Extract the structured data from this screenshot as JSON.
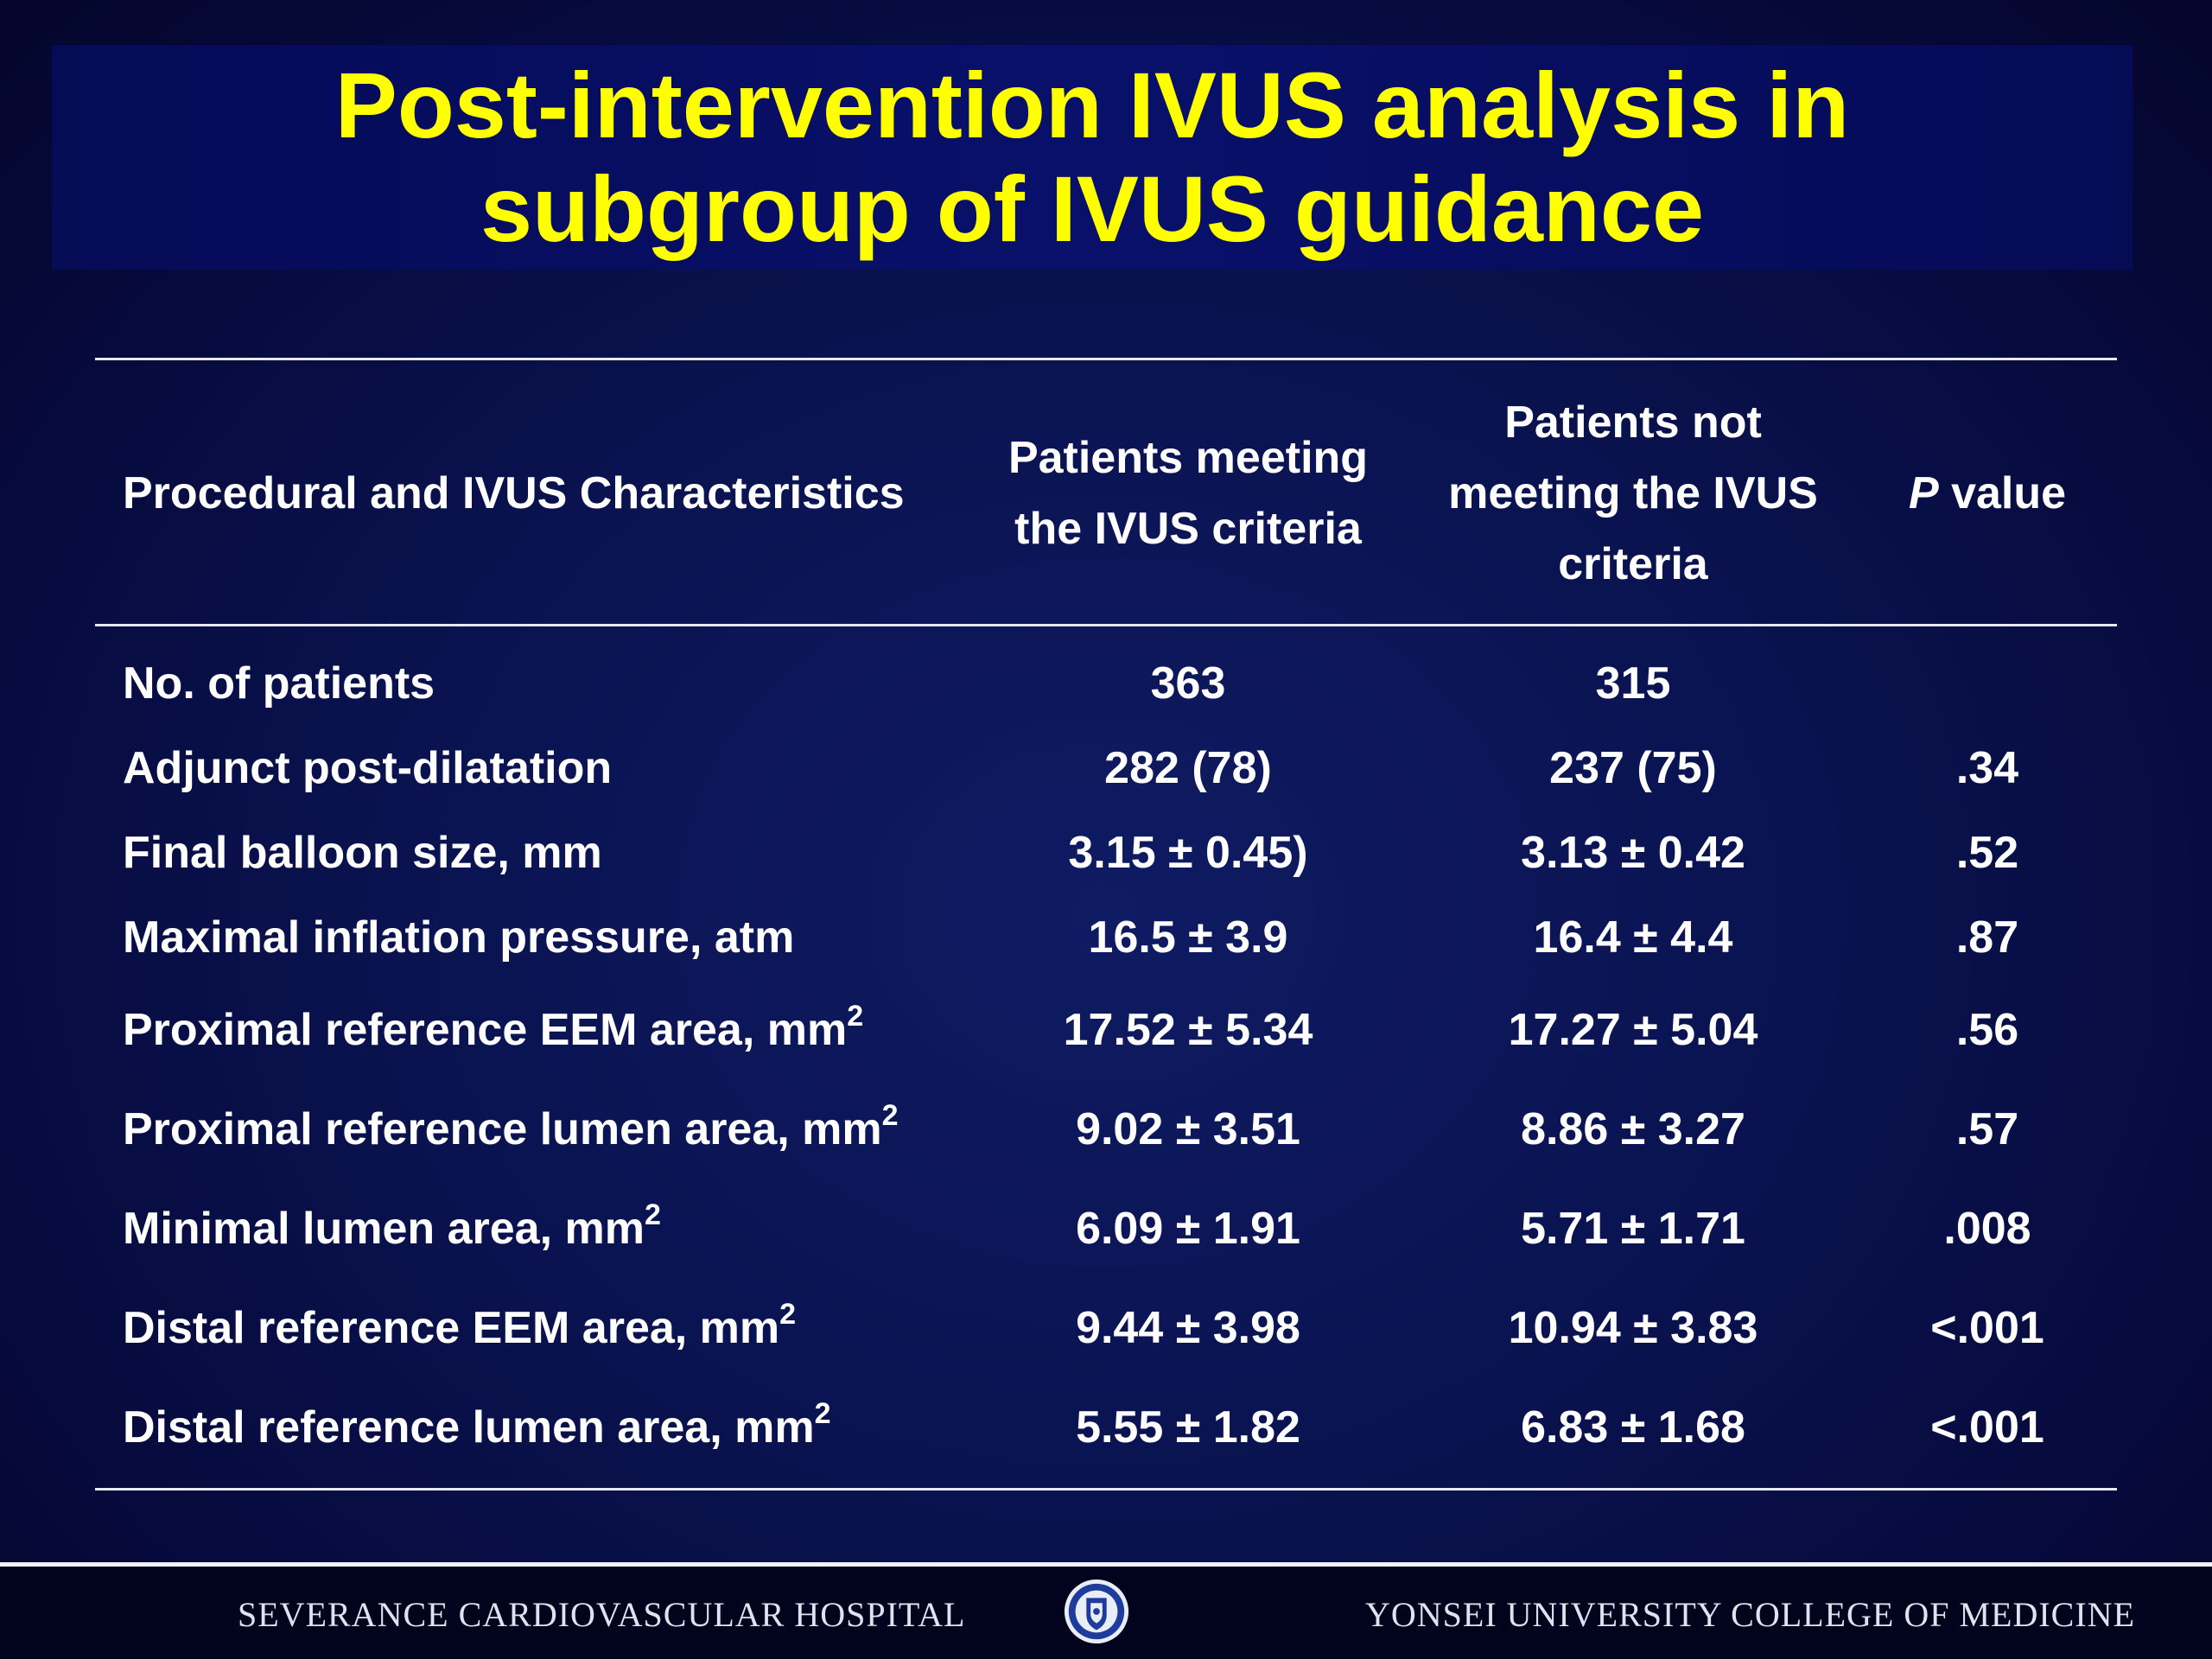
{
  "title": {
    "line1": "Post-intervention IVUS analysis in",
    "line2": "subgroup of IVUS guidance"
  },
  "table": {
    "headers": {
      "characteristics": "Procedural and IVUS Characteristics",
      "group_a_line1": "Patients meeting",
      "group_a_line2": "the IVUS criteria",
      "group_b_line1": "Patients not",
      "group_b_line2": "meeting the IVUS",
      "group_b_line3": "criteria",
      "p_italic": "P",
      "p_rest": " value"
    },
    "rows": [
      {
        "label": "No. of patients",
        "sup": "",
        "a": "363",
        "b": "315",
        "p": ""
      },
      {
        "label": "Adjunct post-dilatation",
        "sup": "",
        "a": "282 (78)",
        "b": "237 (75)",
        "p": ".34"
      },
      {
        "label": "Final balloon size, mm",
        "sup": "",
        "a": "3.15 ± 0.45)",
        "b": "3.13 ± 0.42",
        "p": ".52"
      },
      {
        "label": "Maximal inflation pressure, atm",
        "sup": "",
        "a": "16.5 ± 3.9",
        "b": "16.4 ± 4.4",
        "p": ".87"
      },
      {
        "label": "Proximal reference EEM area, mm",
        "sup": "2",
        "a": "17.52 ± 5.34",
        "b": "17.27 ± 5.04",
        "p": ".56"
      },
      {
        "label": "Proximal reference lumen area, mm",
        "sup": "2",
        "a": "9.02 ± 3.51",
        "b": "8.86 ± 3.27",
        "p": ".57"
      },
      {
        "label": "Minimal lumen area, mm",
        "sup": "2",
        "a": "6.09 ± 1.91",
        "b": "5.71 ± 1.71",
        "p": ".008"
      },
      {
        "label": "Distal reference EEM area, mm",
        "sup": "2",
        "a": "9.44 ± 3.98",
        "b": "10.94 ± 3.83",
        "p": "<.001"
      },
      {
        "label": "Distal reference lumen area, mm",
        "sup": "2",
        "a": "5.55 ± 1.82",
        "b": "6.83 ± 1.68",
        "p": "<.001"
      }
    ]
  },
  "footer": {
    "left": "SEVERANCE CARDIOVASCULAR HOSPITAL",
    "right": "YONSEI UNIVERSITY COLLEGE OF MEDICINE",
    "seal_icon": "university-seal-icon"
  },
  "colors": {
    "title": "#ffff00",
    "text": "#ffffff",
    "background": "#0a1350"
  }
}
